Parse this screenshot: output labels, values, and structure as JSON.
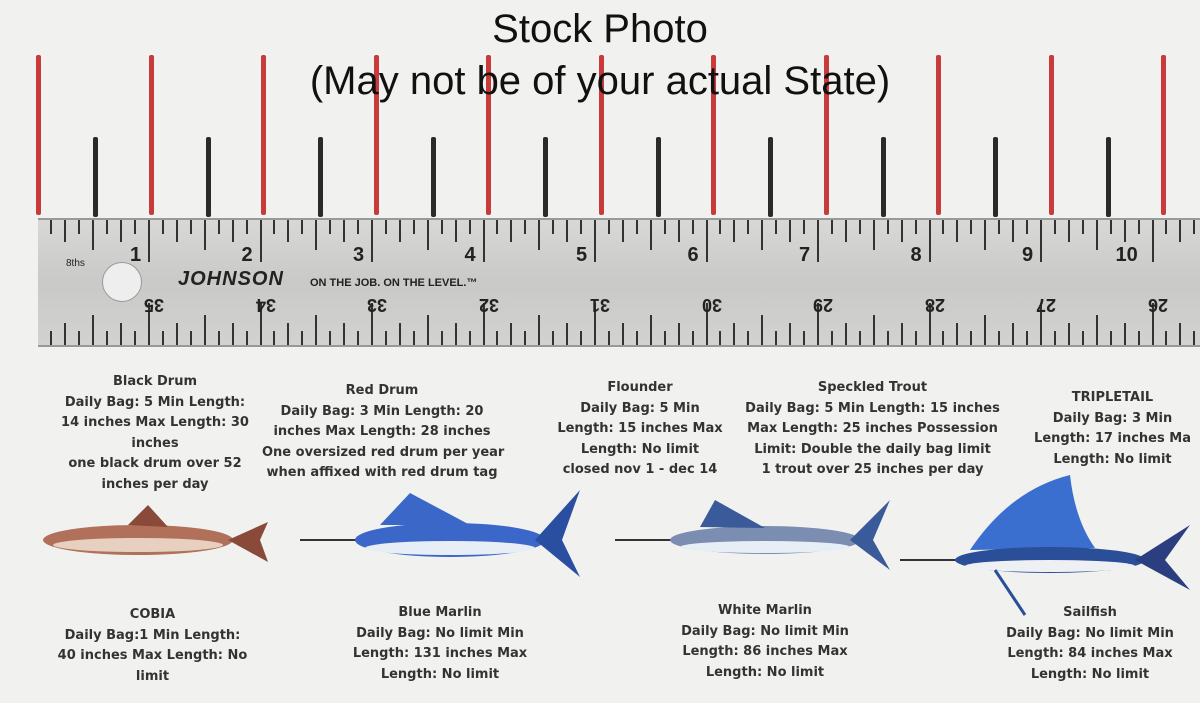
{
  "title": {
    "line1": "Stock Photo",
    "line2": "(May not be of your actual State)"
  },
  "ruler": {
    "brand": "JOHNSON",
    "slogan": "ON THE JOB.  ON THE LEVEL.™",
    "scale_label": "8ths",
    "top_numbers": [
      "1",
      "2",
      "3",
      "4",
      "5",
      "6",
      "7",
      "8",
      "9",
      "10"
    ],
    "bottom_numbers": [
      "35",
      "34",
      "33",
      "32",
      "31",
      "30",
      "29",
      "28",
      "27",
      "26"
    ]
  },
  "species": [
    {
      "name": "Black Drum",
      "lines": [
        "Daily Bag: 5 Min Length:",
        "14 inches Max Length: 30",
        "inches",
        "one black drum over 52",
        "inches per day"
      ]
    },
    {
      "name": "Red Drum",
      "lines": [
        "Daily Bag: 3 Min Length: 20",
        "inches Max Length: 28 inches",
        "One oversized red drum per year",
        "when affixed with red drum tag"
      ]
    },
    {
      "name": "Flounder",
      "lines": [
        "Daily Bag: 5 Min",
        "Length: 15 inches Max",
        "Length: No limit",
        "closed nov 1 - dec 14"
      ]
    },
    {
      "name": "Speckled Trout",
      "lines": [
        "Daily Bag: 5 Min Length: 15 inches",
        "Max Length: 25 inches Possession",
        "Limit: Double the daily bag limit",
        "1 trout over 25 inches per day"
      ]
    },
    {
      "name": "TRIPLETAIL",
      "lines": [
        "Daily Bag: 3 Min",
        "Length: 17 inches Ma",
        "Length: No limit"
      ]
    },
    {
      "name": "COBIA",
      "lines": [
        "Daily Bag:1 Min Length:",
        "40 inches Max Length: No",
        "limit"
      ]
    },
    {
      "name": "Blue Marlin",
      "lines": [
        "Daily Bag: No limit Min",
        "Length: 131 inches Max",
        "Length: No limit"
      ]
    },
    {
      "name": "White Marlin",
      "lines": [
        "Daily Bag: No limit Min",
        "Length: 86 inches Max",
        "Length: No limit"
      ]
    },
    {
      "name": "Sailfish",
      "lines": [
        "Daily Bag: No limit Min",
        "Length: 84 inches Max",
        "Length: No limit"
      ]
    }
  ],
  "colors": {
    "red_marks": "#c93a3a",
    "black_marks": "#2a2a2a",
    "ruler": "#d0d0ce"
  }
}
